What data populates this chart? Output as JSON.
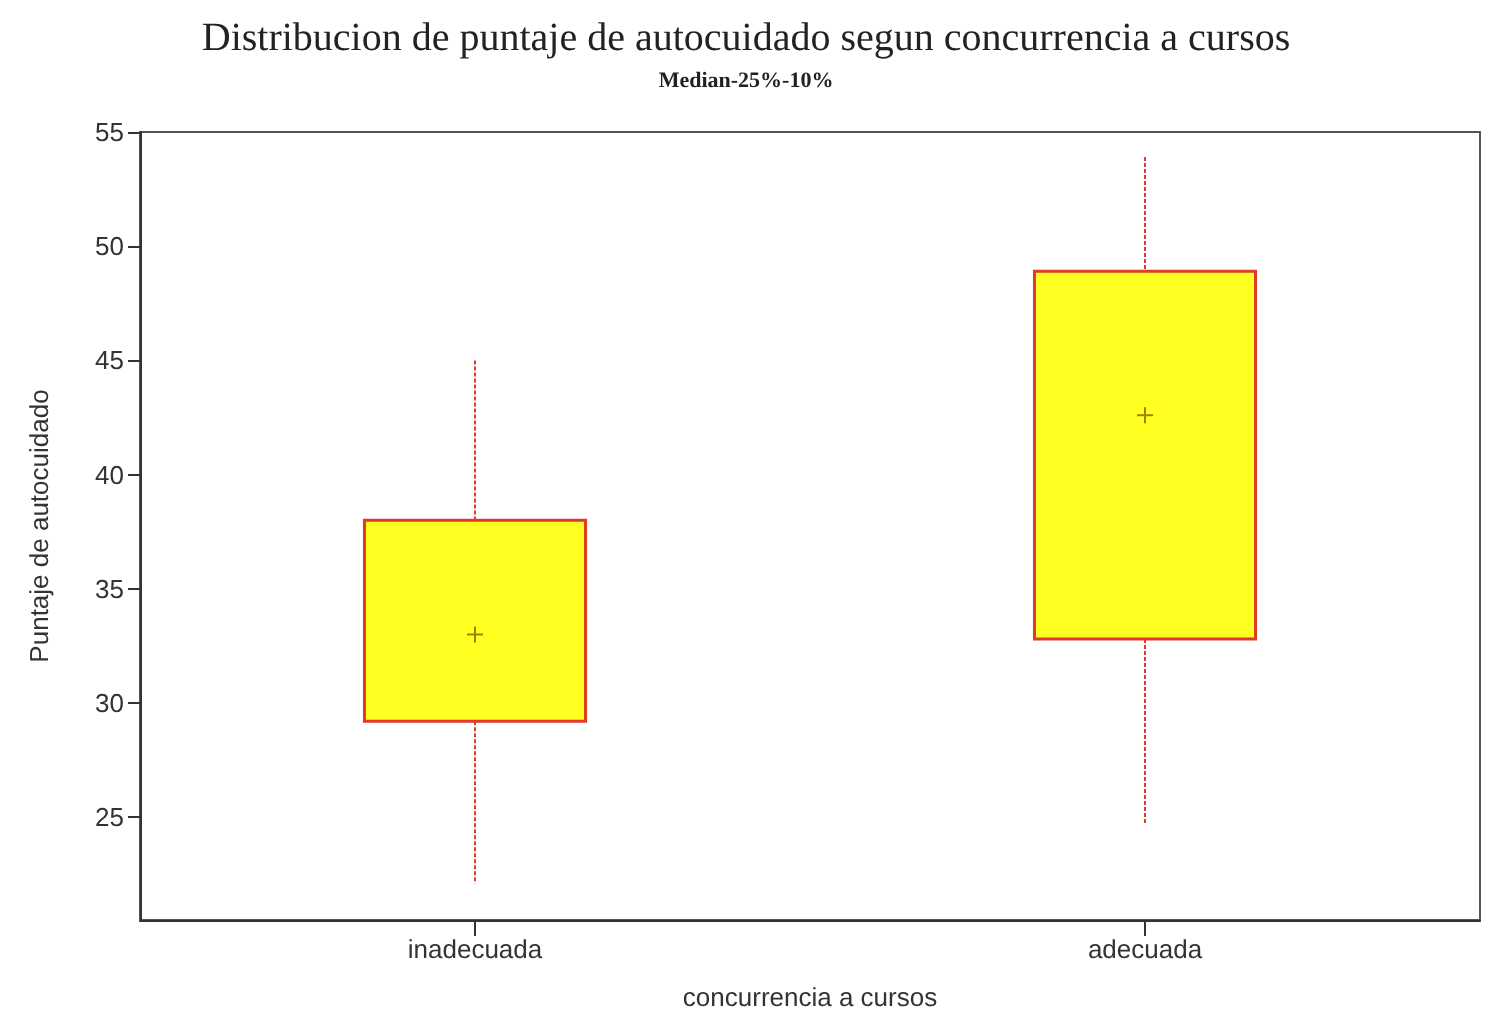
{
  "chart_data": {
    "type": "box",
    "title": "Distribucion de puntaje de autocuidado segun concurrencia a cursos",
    "subtitle": "Median-25%-10%",
    "xlabel": "concurrencia a cursos",
    "ylabel": "Puntaje de autocuidado",
    "categories": [
      "inadecuada",
      "adecuada"
    ],
    "boxes": [
      {
        "low": 22.1,
        "q1": 29.2,
        "median": 33.0,
        "q3": 38.0,
        "high": 45.0
      },
      {
        "low": 24.7,
        "q1": 32.8,
        "median": 42.6,
        "q3": 48.9,
        "high": 53.9
      }
    ],
    "color": "#ffff22",
    "ylim": [
      20.5,
      55
    ],
    "yticks": [
      25,
      30,
      35,
      40,
      45,
      50,
      55
    ],
    "grid": false,
    "marker": "cross"
  }
}
